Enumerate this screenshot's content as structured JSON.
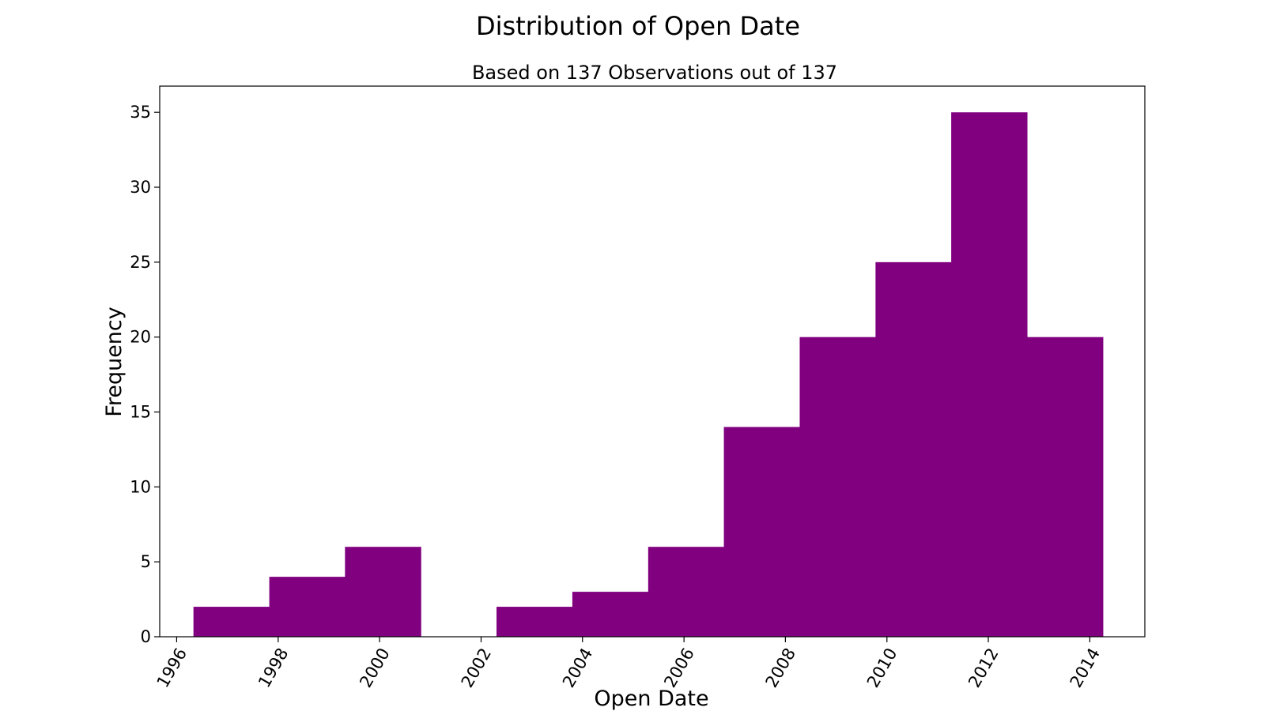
{
  "chart_data": {
    "type": "bar",
    "subtype": "histogram",
    "title": "Distribution of Open Date",
    "subtitle": "Based on 137 Observations out of 137",
    "xlabel": "Open Date",
    "ylabel": "Frequency",
    "bar_color": "#800080",
    "bins": [
      {
        "start": "1996-05-01",
        "end": "1997-10-29",
        "count": 2
      },
      {
        "start": "1997-10-29",
        "end": "1999-04-27",
        "count": 4
      },
      {
        "start": "1999-04-27",
        "end": "2000-10-24",
        "count": 6
      },
      {
        "start": "2000-10-24",
        "end": "2002-04-22",
        "count": 0
      },
      {
        "start": "2002-04-22",
        "end": "2003-10-20",
        "count": 2
      },
      {
        "start": "2003-10-20",
        "end": "2005-04-18",
        "count": 3
      },
      {
        "start": "2005-04-18",
        "end": "2006-10-15",
        "count": 6
      },
      {
        "start": "2006-10-15",
        "end": "2008-04-13",
        "count": 14
      },
      {
        "start": "2008-04-13",
        "end": "2009-10-11",
        "count": 20
      },
      {
        "start": "2009-10-11",
        "end": "2011-04-09",
        "count": 25
      },
      {
        "start": "2011-04-09",
        "end": "2012-10-06",
        "count": 35
      },
      {
        "start": "2012-10-06",
        "end": "2014-04-05",
        "count": 20
      }
    ],
    "xlim": [
      "1995-09-01",
      "2015-02-01"
    ],
    "ylim": [
      0,
      36.75
    ],
    "xticks": [
      "1996",
      "1998",
      "2000",
      "2002",
      "2004",
      "2006",
      "2008",
      "2010",
      "2012",
      "2014"
    ],
    "yticks": [
      0,
      5,
      10,
      15,
      20,
      25,
      30,
      35
    ],
    "grid": false,
    "legend": "none"
  }
}
